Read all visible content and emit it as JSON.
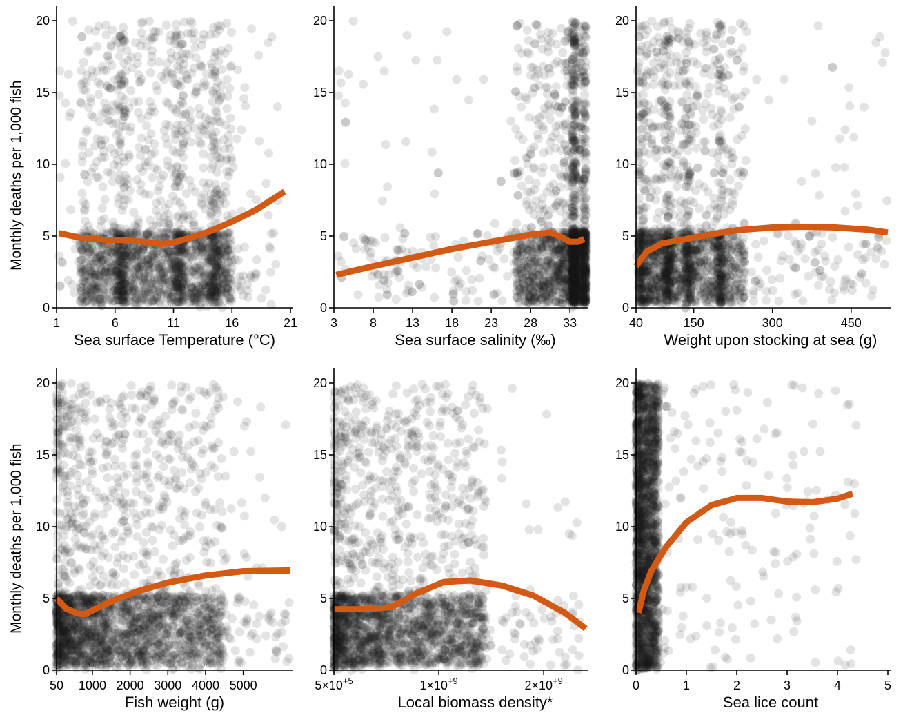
{
  "figure": {
    "y_axis_label": "Monthly deaths per 1,000 fish"
  },
  "colors": {
    "points": "#1a1a1a",
    "smooth_line": "#d25a14",
    "axis": "#000000"
  },
  "chart_data": [
    {
      "type": "scatter",
      "xlabel": "Sea surface Temperature (°C)",
      "ylabel": "Monthly deaths per 1,000 fish",
      "xlim": [
        1,
        21
      ],
      "ylim": [
        0,
        20
      ],
      "x_ticks": [
        1,
        6,
        11,
        16,
        21
      ],
      "x_tick_labels": [
        "1",
        "6",
        "11",
        "16",
        "21"
      ],
      "y_ticks": [
        0,
        5,
        10,
        15,
        20
      ],
      "y_tick_labels": [
        "0",
        "5",
        "10",
        "15",
        "20"
      ],
      "smooth": {
        "x": [
          1.2,
          3,
          5,
          7,
          8.5,
          10,
          11,
          12.5,
          14,
          16,
          18,
          20.5
        ],
        "y": [
          5.2,
          4.9,
          4.75,
          4.7,
          4.6,
          4.45,
          4.55,
          4.9,
          5.3,
          6.0,
          6.8,
          8.1
        ]
      },
      "scatter_cloud": {
        "x_core": [
          3,
          16
        ],
        "x_range": [
          1.2,
          20
        ],
        "x_shape": "uniform",
        "y_shape": "low-heavy",
        "density_ridges": [
          6.5,
          11.5,
          14.5
        ]
      }
    },
    {
      "type": "scatter",
      "xlabel": "Sea surface salinity (‰)",
      "ylabel": "",
      "xlim": [
        3,
        35
      ],
      "ylim": [
        0,
        20
      ],
      "x_ticks": [
        3,
        8,
        13,
        18,
        23,
        28,
        33
      ],
      "x_tick_labels": [
        "3",
        "8",
        "13",
        "18",
        "23",
        "28",
        "33"
      ],
      "y_ticks": [
        0,
        5,
        10,
        15,
        20
      ],
      "y_tick_labels": [
        "0",
        "5",
        "10",
        "15",
        "20"
      ],
      "smooth": {
        "x": [
          3.3,
          8,
          13,
          18,
          23,
          28,
          30.5,
          32,
          33,
          34,
          34.8
        ],
        "y": [
          2.3,
          2.9,
          3.5,
          4.1,
          4.6,
          5.1,
          5.25,
          4.9,
          4.6,
          4.6,
          4.8
        ]
      },
      "scatter_cloud": {
        "x_core": [
          26,
          35
        ],
        "x_range": [
          3.5,
          35
        ],
        "x_shape": "right-heavy",
        "y_shape": "low-heavy",
        "density_ridges": [
          33.5
        ]
      }
    },
    {
      "type": "scatter",
      "xlabel": "Weight upon stocking at sea (g)",
      "ylabel": "",
      "xlim": [
        40,
        520
      ],
      "ylim": [
        0,
        20
      ],
      "x_ticks": [
        40,
        150,
        300,
        450
      ],
      "x_tick_labels": [
        "40",
        "150",
        "300",
        "450"
      ],
      "y_ticks": [
        0,
        5,
        10,
        15,
        20
      ],
      "y_tick_labels": [
        "0",
        "5",
        "10",
        "15",
        "20"
      ],
      "smooth": {
        "x": [
          40,
          60,
          90,
          130,
          180,
          230,
          300,
          360,
          420,
          480,
          520
        ],
        "y": [
          2.9,
          3.9,
          4.5,
          4.75,
          5.1,
          5.4,
          5.6,
          5.65,
          5.6,
          5.45,
          5.25
        ]
      },
      "scatter_cloud": {
        "x_core": [
          45,
          250
        ],
        "x_range": [
          40,
          520
        ],
        "x_shape": "left-heavy",
        "y_shape": "low-heavy",
        "density_ridges": [
          100,
          140,
          200
        ]
      }
    },
    {
      "type": "scatter",
      "xlabel": "Fish weight (g)",
      "ylabel": "Monthly deaths per 1,000 fish",
      "xlim": [
        50,
        6250
      ],
      "ylim": [
        0,
        20
      ],
      "x_ticks": [
        50,
        1000,
        2000,
        3000,
        4000,
        5000
      ],
      "x_tick_labels": [
        "50",
        "1000",
        "2000",
        "3000",
        "4000",
        "5000"
      ],
      "y_ticks": [
        0,
        5,
        10,
        15,
        20
      ],
      "y_tick_labels": [
        "0",
        "5",
        "10",
        "15",
        "20"
      ],
      "smooth": {
        "x": [
          50,
          300,
          600,
          800,
          1100,
          1600,
          2200,
          3000,
          4000,
          5000,
          6250
        ],
        "y": [
          5.0,
          4.3,
          3.95,
          3.9,
          4.3,
          4.9,
          5.5,
          6.1,
          6.6,
          6.9,
          6.95
        ]
      },
      "scatter_cloud": {
        "x_core": [
          50,
          4500
        ],
        "x_range": [
          50,
          6250
        ],
        "x_shape": "left-heavy",
        "y_shape": "low-heavy",
        "density_ridges": []
      }
    },
    {
      "type": "scatter",
      "xlabel": "Local biomass density*",
      "ylabel": "",
      "xlim": [
        0,
        2400000000
      ],
      "ylim": [
        0,
        20
      ],
      "x_ticks": [
        0,
        1000000000,
        2000000000
      ],
      "x_tick_labels": [
        [
          "5×10",
          "+5"
        ],
        [
          "1×10",
          "+9"
        ],
        [
          "2×10",
          "+9"
        ]
      ],
      "y_ticks": [
        0,
        5,
        10,
        15,
        20
      ],
      "y_tick_labels": [
        "0",
        "5",
        "10",
        "15",
        "20"
      ],
      "smooth": {
        "x": [
          0,
          300000000,
          550000000,
          800000000,
          1050000000,
          1300000000,
          1600000000,
          1900000000,
          2200000000,
          2400000000
        ],
        "y": [
          4.25,
          4.25,
          4.4,
          5.4,
          6.15,
          6.25,
          5.9,
          5.2,
          4.0,
          2.9
        ]
      },
      "scatter_cloud": {
        "x_core": [
          0,
          1450000000
        ],
        "x_range": [
          0,
          2350000000
        ],
        "x_shape": "left-heavy",
        "y_shape": "low-heavy",
        "density_ridges": []
      }
    },
    {
      "type": "scatter",
      "xlabel": "Sea lice count",
      "ylabel": "",
      "xlim": [
        0,
        5
      ],
      "ylim": [
        0,
        20
      ],
      "x_ticks": [
        0,
        1,
        2,
        3,
        4,
        5
      ],
      "x_tick_labels": [
        "0",
        "1",
        "2",
        "3",
        "4",
        "5"
      ],
      "y_ticks": [
        0,
        5,
        10,
        15,
        20
      ],
      "y_tick_labels": [
        "0",
        "5",
        "10",
        "15",
        "20"
      ],
      "smooth": {
        "x": [
          0.05,
          0.15,
          0.3,
          0.6,
          1.0,
          1.5,
          2.0,
          2.5,
          3.0,
          3.5,
          4.0,
          4.3
        ],
        "y": [
          4.0,
          5.5,
          6.9,
          8.6,
          10.3,
          11.5,
          12.0,
          12.0,
          11.75,
          11.7,
          11.95,
          12.3
        ]
      },
      "scatter_cloud": {
        "x_core": [
          0,
          0.45
        ],
        "x_range": [
          0,
          4.4
        ],
        "x_shape": "very-left-heavy",
        "y_shape": "uniform",
        "density_ridges": []
      }
    }
  ]
}
